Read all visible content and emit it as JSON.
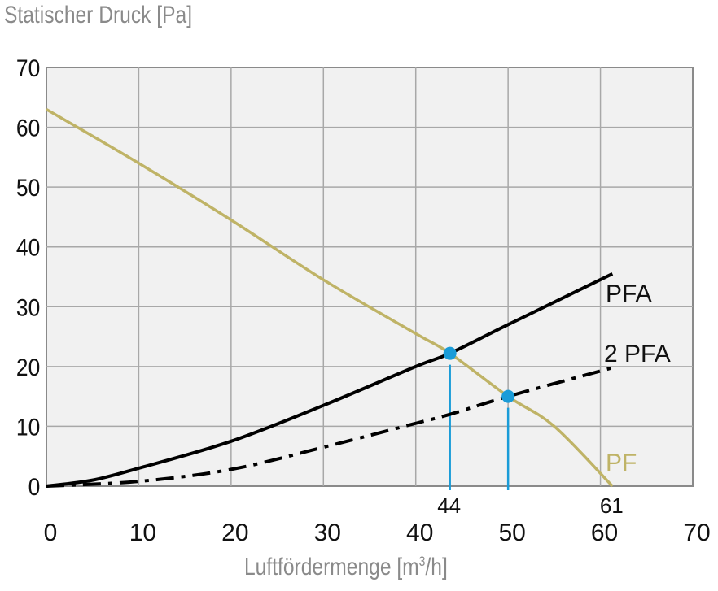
{
  "chart_data": {
    "type": "line",
    "title": "",
    "ylabel": "Statischer Druck [Pa]",
    "xlabel": "Luftfördermenge [m³/h]",
    "xlabel_base": "Luftfördermenge [m",
    "xlabel_sup": "3",
    "xlabel_tail": "/h]",
    "xlim": [
      0,
      70
    ],
    "ylim": [
      0,
      70
    ],
    "x_ticks": [
      "0",
      "10",
      "20",
      "30",
      "40",
      "50",
      "60",
      "70"
    ],
    "y_ticks": [
      "0",
      "10",
      "20",
      "30",
      "40",
      "50",
      "60",
      "70"
    ],
    "grid": true,
    "series": [
      {
        "name": "PF",
        "style": "solid",
        "color": "#bfb366",
        "x": [
          0,
          10,
          20,
          30,
          40,
          43.7,
          50,
          55,
          61.3
        ],
        "y": [
          63,
          54,
          44.5,
          34.5,
          25.5,
          22.2,
          15,
          10,
          0
        ]
      },
      {
        "name": "PFA",
        "style": "solid",
        "color": "#000000",
        "x": [
          0,
          5,
          10,
          20,
          30,
          40,
          43.7,
          50,
          61.3
        ],
        "y": [
          0,
          1,
          3,
          7.5,
          13.5,
          20,
          22.2,
          27,
          35.5
        ]
      },
      {
        "name": "2 PFA",
        "style": "dash-dot",
        "color": "#000000",
        "x": [
          0,
          10,
          20,
          30,
          40,
          43.7,
          50,
          61.3
        ],
        "y": [
          0,
          0.8,
          2.8,
          6.5,
          10.5,
          12,
          15,
          19.8
        ]
      }
    ],
    "operating_points": [
      {
        "x": 43.7,
        "y": 22.2,
        "label": "44",
        "color": "#1a9cd8"
      },
      {
        "x": 50,
        "y": 15,
        "label": "",
        "color": "#1a9cd8"
      }
    ],
    "annotations": [
      {
        "text": "44",
        "x": 43.7
      },
      {
        "text": "61",
        "x": 61.3
      }
    ],
    "colors": {
      "plot_background": "#f1f1f1",
      "grid": "#a8a8a8",
      "axis_title": "#8a8a8a",
      "pf": "#bfb366",
      "marker": "#1a9cd8"
    }
  }
}
